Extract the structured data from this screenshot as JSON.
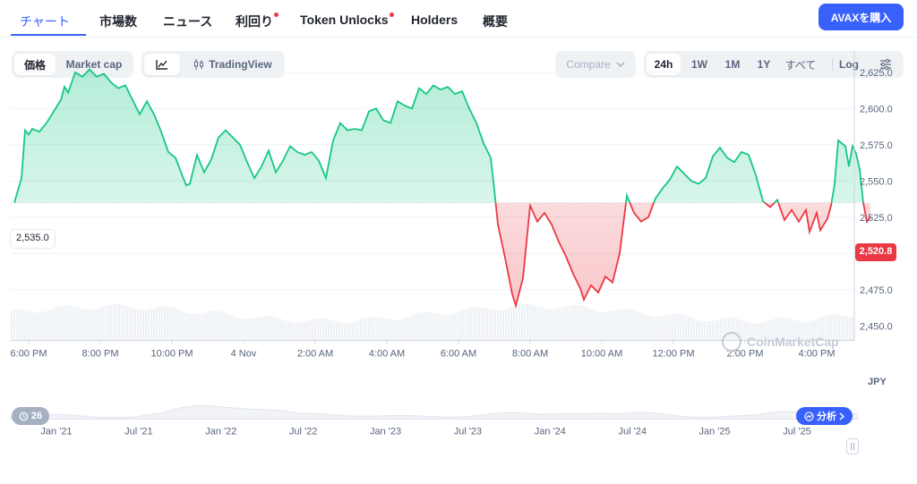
{
  "tabs": [
    {
      "label": "チャート"
    },
    {
      "label": "市場数"
    },
    {
      "label": "ニュース"
    },
    {
      "label": "利回り"
    },
    {
      "label": "Token Unlocks"
    },
    {
      "label": "Holders"
    },
    {
      "label": "概要"
    }
  ],
  "buy_button": "AVAXを購入",
  "controls": {
    "price_label": "価格",
    "mcap_label": "Market cap",
    "tradingview_label": "TradingView",
    "compare_label": "Compare",
    "ranges": [
      "24h",
      "1W",
      "1M",
      "1Y",
      "すべて"
    ],
    "log_label": "Log"
  },
  "colors": {
    "up": "#16c784",
    "down": "#ea3943",
    "accent": "#3861fb"
  },
  "chart_data": {
    "type": "area",
    "currency": "JPY",
    "baseline": 2535.0,
    "baseline_label": "2,535.0",
    "last_value_label": "2,520.8",
    "ylim": [
      2440,
      2640
    ],
    "y_ticks": [
      {
        "value": 2625,
        "label": "2,625.0"
      },
      {
        "value": 2600,
        "label": "2,600.0"
      },
      {
        "value": 2575,
        "label": "2,575.0"
      },
      {
        "value": 2550,
        "label": "2,550.0"
      },
      {
        "value": 2525,
        "label": "2,525.0"
      },
      {
        "value": 2500,
        "label": "2,500.0"
      },
      {
        "value": 2475,
        "label": "2,475.0"
      },
      {
        "value": 2450,
        "label": "2,450.0"
      }
    ],
    "x_ticks": [
      {
        "t": 0.5,
        "label": "6:00 PM"
      },
      {
        "t": 2.5,
        "label": "8:00 PM"
      },
      {
        "t": 4.5,
        "label": "10:00 PM"
      },
      {
        "t": 6.5,
        "label": "4 Nov"
      },
      {
        "t": 8.5,
        "label": "2:00 AM"
      },
      {
        "t": 10.5,
        "label": "4:00 AM"
      },
      {
        "t": 12.5,
        "label": "6:00 AM"
      },
      {
        "t": 14.5,
        "label": "8:00 AM"
      },
      {
        "t": 16.5,
        "label": "10:00 AM"
      },
      {
        "t": 18.5,
        "label": "12:00 PM"
      },
      {
        "t": 20.5,
        "label": "2:00 PM"
      },
      {
        "t": 22.5,
        "label": "4:00 PM"
      }
    ],
    "x_range": [
      0,
      23.55
    ],
    "series": [
      {
        "values": [
          [
            0.1,
            2535
          ],
          [
            0.3,
            2552
          ],
          [
            0.4,
            2585
          ],
          [
            0.5,
            2582
          ],
          [
            0.6,
            2586
          ],
          [
            0.8,
            2584
          ],
          [
            1.0,
            2590
          ],
          [
            1.2,
            2598
          ],
          [
            1.4,
            2606
          ],
          [
            1.5,
            2615
          ],
          [
            1.6,
            2611
          ],
          [
            1.8,
            2625
          ],
          [
            2.0,
            2622
          ],
          [
            2.2,
            2627
          ],
          [
            2.4,
            2622
          ],
          [
            2.6,
            2624
          ],
          [
            2.8,
            2618
          ],
          [
            3.0,
            2614
          ],
          [
            3.2,
            2616
          ],
          [
            3.4,
            2606
          ],
          [
            3.6,
            2596
          ],
          [
            3.8,
            2605
          ],
          [
            4.0,
            2596
          ],
          [
            4.2,
            2584
          ],
          [
            4.4,
            2570
          ],
          [
            4.6,
            2566
          ],
          [
            4.8,
            2553
          ],
          [
            4.9,
            2547
          ],
          [
            5.0,
            2548
          ],
          [
            5.2,
            2568
          ],
          [
            5.4,
            2556
          ],
          [
            5.6,
            2565
          ],
          [
            5.8,
            2580
          ],
          [
            6.0,
            2585
          ],
          [
            6.2,
            2580
          ],
          [
            6.4,
            2575
          ],
          [
            6.6,
            2563
          ],
          [
            6.8,
            2552
          ],
          [
            7.0,
            2560
          ],
          [
            7.2,
            2571
          ],
          [
            7.4,
            2556
          ],
          [
            7.6,
            2564
          ],
          [
            7.8,
            2574
          ],
          [
            8.0,
            2570
          ],
          [
            8.2,
            2568
          ],
          [
            8.4,
            2570
          ],
          [
            8.6,
            2564
          ],
          [
            8.8,
            2552
          ],
          [
            9.0,
            2578
          ],
          [
            9.2,
            2590
          ],
          [
            9.4,
            2585
          ],
          [
            9.6,
            2586
          ],
          [
            9.8,
            2585
          ],
          [
            10.0,
            2598
          ],
          [
            10.2,
            2600
          ],
          [
            10.4,
            2592
          ],
          [
            10.6,
            2590
          ],
          [
            10.8,
            2605
          ],
          [
            11.0,
            2602
          ],
          [
            11.2,
            2600
          ],
          [
            11.4,
            2614
          ],
          [
            11.6,
            2610
          ],
          [
            11.8,
            2616
          ],
          [
            12.0,
            2613
          ],
          [
            12.2,
            2615
          ],
          [
            12.4,
            2610
          ],
          [
            12.6,
            2612
          ],
          [
            12.8,
            2600
          ],
          [
            13.0,
            2590
          ],
          [
            13.2,
            2576
          ],
          [
            13.4,
            2566
          ],
          [
            13.5,
            2544
          ],
          [
            13.6,
            2520
          ],
          [
            13.8,
            2497
          ],
          [
            14.0,
            2472
          ],
          [
            14.1,
            2464
          ],
          [
            14.3,
            2483
          ],
          [
            14.5,
            2533
          ],
          [
            14.7,
            2522
          ],
          [
            14.9,
            2528
          ],
          [
            15.1,
            2520
          ],
          [
            15.3,
            2508
          ],
          [
            15.5,
            2498
          ],
          [
            15.7,
            2486
          ],
          [
            15.9,
            2476
          ],
          [
            16.0,
            2468
          ],
          [
            16.2,
            2478
          ],
          [
            16.4,
            2473
          ],
          [
            16.6,
            2484
          ],
          [
            16.8,
            2480
          ],
          [
            17.0,
            2500
          ],
          [
            17.2,
            2540
          ],
          [
            17.4,
            2528
          ],
          [
            17.6,
            2522
          ],
          [
            17.8,
            2525
          ],
          [
            18.0,
            2538
          ],
          [
            18.2,
            2545
          ],
          [
            18.4,
            2551
          ],
          [
            18.6,
            2560
          ],
          [
            18.8,
            2555
          ],
          [
            19.0,
            2550
          ],
          [
            19.2,
            2548
          ],
          [
            19.4,
            2552
          ],
          [
            19.6,
            2567
          ],
          [
            19.8,
            2573
          ],
          [
            20.0,
            2566
          ],
          [
            20.2,
            2563
          ],
          [
            20.4,
            2570
          ],
          [
            20.6,
            2568
          ],
          [
            20.8,
            2554
          ],
          [
            21.0,
            2536
          ],
          [
            21.2,
            2532
          ],
          [
            21.4,
            2537
          ],
          [
            21.6,
            2523
          ],
          [
            21.8,
            2530
          ],
          [
            22.0,
            2522
          ],
          [
            22.2,
            2530
          ],
          [
            22.3,
            2515
          ],
          [
            22.5,
            2528
          ],
          [
            22.6,
            2516
          ],
          [
            22.8,
            2524
          ],
          [
            22.9,
            2533
          ],
          [
            23.0,
            2548
          ],
          [
            23.1,
            2578
          ],
          [
            23.3,
            2574
          ],
          [
            23.4,
            2560
          ],
          [
            23.5,
            2574
          ],
          [
            23.6,
            2569
          ],
          [
            23.7,
            2558
          ],
          [
            23.8,
            2535
          ],
          [
            23.9,
            2522
          ],
          [
            24.0,
            2525
          ]
        ]
      }
    ],
    "navigator": {
      "x_ticks": [
        "Jan '21",
        "Jul '21",
        "Jan '22",
        "Jul '22",
        "Jan '23",
        "Jul '23",
        "Jan '24",
        "Jul '24",
        "Jan '25",
        "Jul '25"
      ]
    }
  },
  "badges": {
    "history_count": "26",
    "analysis_label": "分析",
    "watermark": "CoinMarketCap"
  }
}
